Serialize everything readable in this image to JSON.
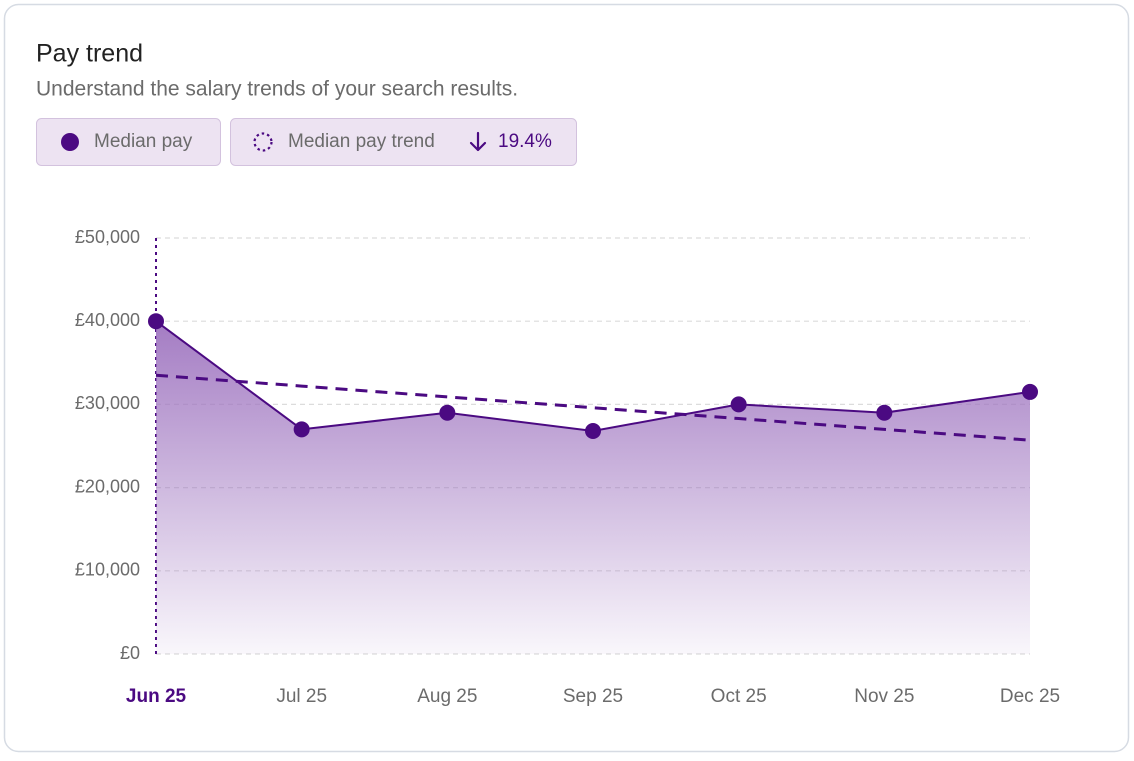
{
  "chart_data": {
    "type": "area",
    "title": "Pay trend",
    "subtitle": "Understand the salary trends of your search results.",
    "categories": [
      "Jun 25",
      "Jul 25",
      "Aug 25",
      "Sep 25",
      "Oct 25",
      "Nov 25",
      "Dec 25"
    ],
    "series": [
      {
        "name": "Median pay",
        "color": "#4b0a82",
        "values": [
          40000,
          27000,
          29000,
          26800,
          30000,
          29000,
          31500
        ]
      },
      {
        "name": "Median pay trend",
        "color": "#4b0a82",
        "values": [
          33500,
          32200,
          30900,
          29600,
          28300,
          27000,
          25700
        ],
        "trend_change": "19.4%"
      }
    ],
    "ylim": [
      0,
      50000
    ],
    "yticks": [
      {
        "value": 0,
        "label": "£0"
      },
      {
        "value": 10000,
        "label": "£10,000"
      },
      {
        "value": 20000,
        "label": "£20,000"
      },
      {
        "value": 30000,
        "label": "£30,000"
      },
      {
        "value": 40000,
        "label": "£40,000"
      },
      {
        "value": 50000,
        "label": "£50,000"
      }
    ],
    "grid": true,
    "selected_category": "Jun 25"
  }
}
